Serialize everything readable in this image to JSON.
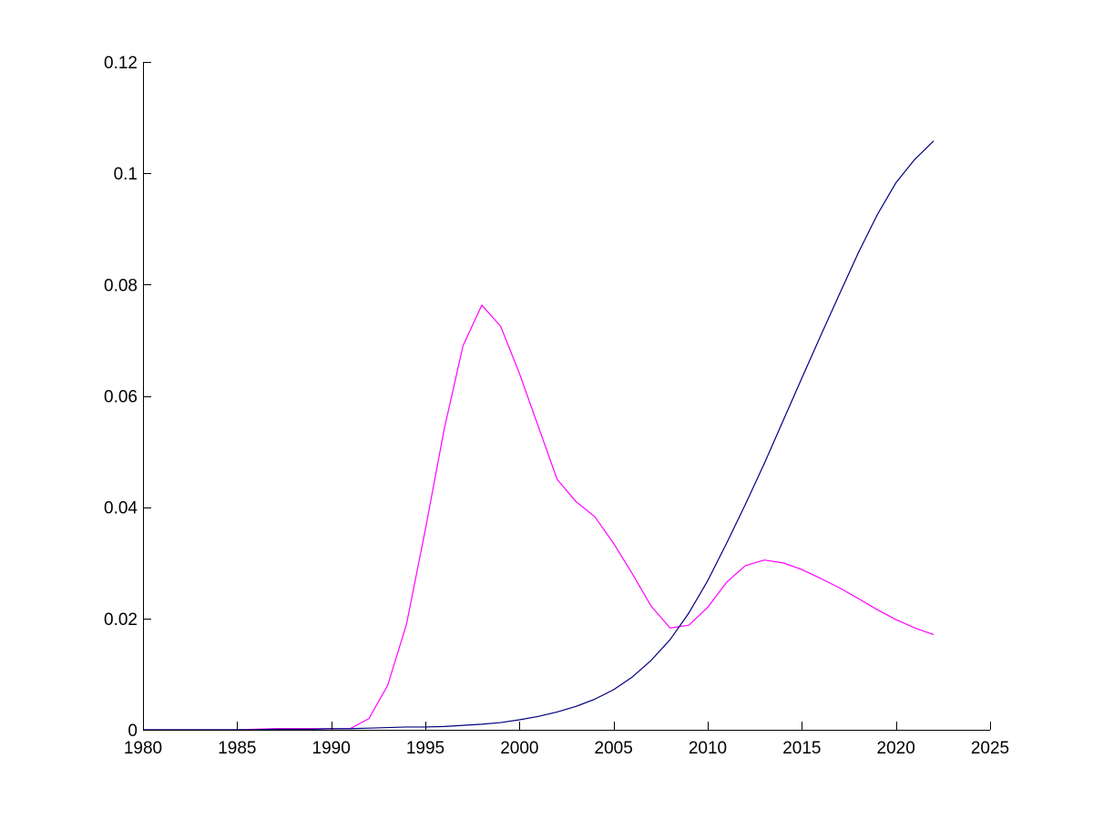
{
  "chart_data": {
    "type": "line",
    "title": "",
    "xlabel": "",
    "ylabel": "",
    "xlim": [
      1980,
      2025
    ],
    "ylim": [
      0,
      0.12
    ],
    "grid": false,
    "legend": "none",
    "x_ticks": [
      1980,
      1985,
      1990,
      1995,
      2000,
      2005,
      2010,
      2015,
      2020,
      2025
    ],
    "x_tick_labels": [
      "1980",
      "1985",
      "1990",
      "1995",
      "2000",
      "2005",
      "2010",
      "2015",
      "2020",
      "2025"
    ],
    "y_ticks": [
      0,
      0.02,
      0.04,
      0.06,
      0.08,
      0.1,
      0.12
    ],
    "y_tick_labels": [
      "0",
      "0.02",
      "0.04",
      "0.06",
      "0.08",
      "0.1",
      "0.12"
    ],
    "x": [
      1980,
      1981,
      1982,
      1983,
      1984,
      1985,
      1986,
      1987,
      1988,
      1989,
      1990,
      1991,
      1992,
      1993,
      1994,
      1995,
      1996,
      1997,
      1998,
      1999,
      2000,
      2001,
      2002,
      2003,
      2004,
      2005,
      2006,
      2007,
      2008,
      2009,
      2010,
      2011,
      2012,
      2013,
      2014,
      2015,
      2016,
      2017,
      2018,
      2019,
      2020,
      2021,
      2022
    ],
    "series": [
      {
        "color": "#ff00ff",
        "values": [
          0,
          0,
          0,
          0,
          0,
          0,
          0.0001,
          0.0002,
          0.0002,
          0.0002,
          0.0002,
          0.0002,
          0.002,
          0.008,
          0.019,
          0.036,
          0.054,
          0.069,
          0.0763,
          0.0725,
          0.064,
          0.0545,
          0.045,
          0.041,
          0.0383,
          0.0335,
          0.028,
          0.0222,
          0.0183,
          0.0188,
          0.022,
          0.0265,
          0.0295,
          0.0305,
          0.03,
          0.0288,
          0.0272,
          0.0255,
          0.0236,
          0.0216,
          0.0198,
          0.0183,
          0.0171
        ]
      },
      {
        "color": "#00007f",
        "values": [
          0,
          0,
          0,
          0,
          0,
          0,
          0,
          0.0001,
          0.0001,
          0.0001,
          0.0002,
          0.0002,
          0.0003,
          0.0004,
          0.0005,
          0.0005,
          0.0006,
          0.0008,
          0.001,
          0.0013,
          0.0018,
          0.0024,
          0.0032,
          0.0042,
          0.0055,
          0.0072,
          0.0095,
          0.0125,
          0.0162,
          0.021,
          0.0268,
          0.0335,
          0.0405,
          0.0478,
          0.0555,
          0.0632,
          0.0708,
          0.0783,
          0.0857,
          0.0925,
          0.0983,
          0.1025,
          0.1058
        ]
      }
    ]
  }
}
